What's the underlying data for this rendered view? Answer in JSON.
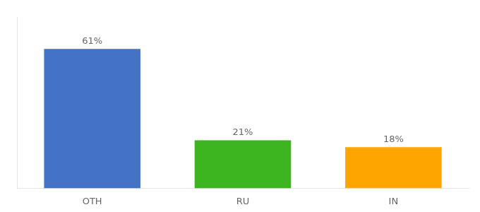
{
  "chart_data": {
    "type": "bar",
    "categories": [
      "OTH",
      "RU",
      "IN"
    ],
    "values": [
      61,
      21,
      18
    ],
    "value_labels": [
      "61%",
      "21%",
      "18%"
    ],
    "data_labels": true,
    "colors": [
      "#4472C4",
      "#3CB520",
      "#FFA500"
    ],
    "ylim": [
      0,
      75
    ],
    "tick_labels": "x",
    "grid": false
  }
}
